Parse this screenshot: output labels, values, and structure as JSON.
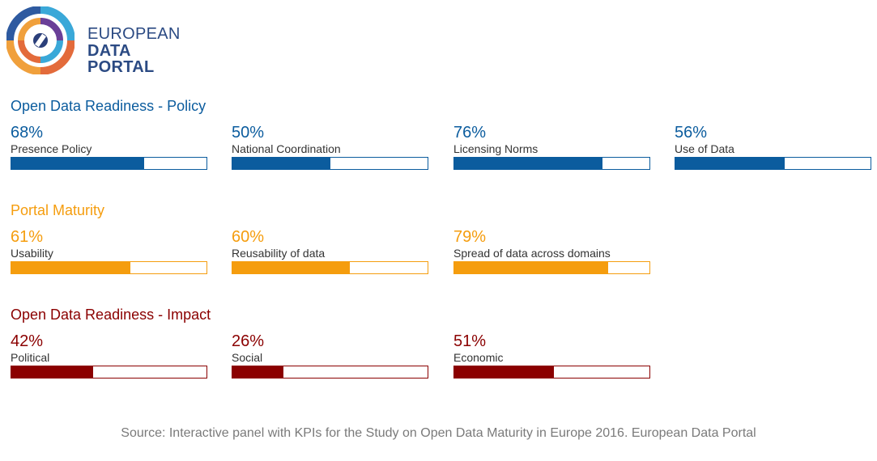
{
  "header": {
    "logo_line1": "EUROPEAN",
    "logo_line2": "DATA PORTAL",
    "logo_icon": "european-data-portal-logo-icon"
  },
  "chart_data": [
    {
      "type": "bar",
      "title": "Open Data Readiness - Policy",
      "color": "#0b5c9e",
      "categories": [
        "Presence Policy",
        "National Coordination",
        "Licensing Norms",
        "Use of Data"
      ],
      "values": [
        68,
        50,
        76,
        56
      ],
      "labels": [
        "68%",
        "50%",
        "76%",
        "56%"
      ],
      "ylim": [
        0,
        100
      ]
    },
    {
      "type": "bar",
      "title": "Portal Maturity",
      "color": "#f59d0e",
      "categories": [
        "Usability",
        "Reusability of data",
        "Spread of data across domains"
      ],
      "values": [
        61,
        60,
        79
      ],
      "labels": [
        "61%",
        "60%",
        "79%"
      ],
      "ylim": [
        0,
        100
      ]
    },
    {
      "type": "bar",
      "title": "Open Data Readiness - Impact",
      "color": "#8b0000",
      "categories": [
        "Political",
        "Social",
        "Economic"
      ],
      "values": [
        42,
        26,
        51
      ],
      "labels": [
        "42%",
        "26%",
        "51%"
      ],
      "ylim": [
        0,
        100
      ]
    }
  ],
  "footer": {
    "source": "Source: Interactive panel with KPIs for the Study on Open Data Maturity in Europe 2016. European Data Portal"
  }
}
